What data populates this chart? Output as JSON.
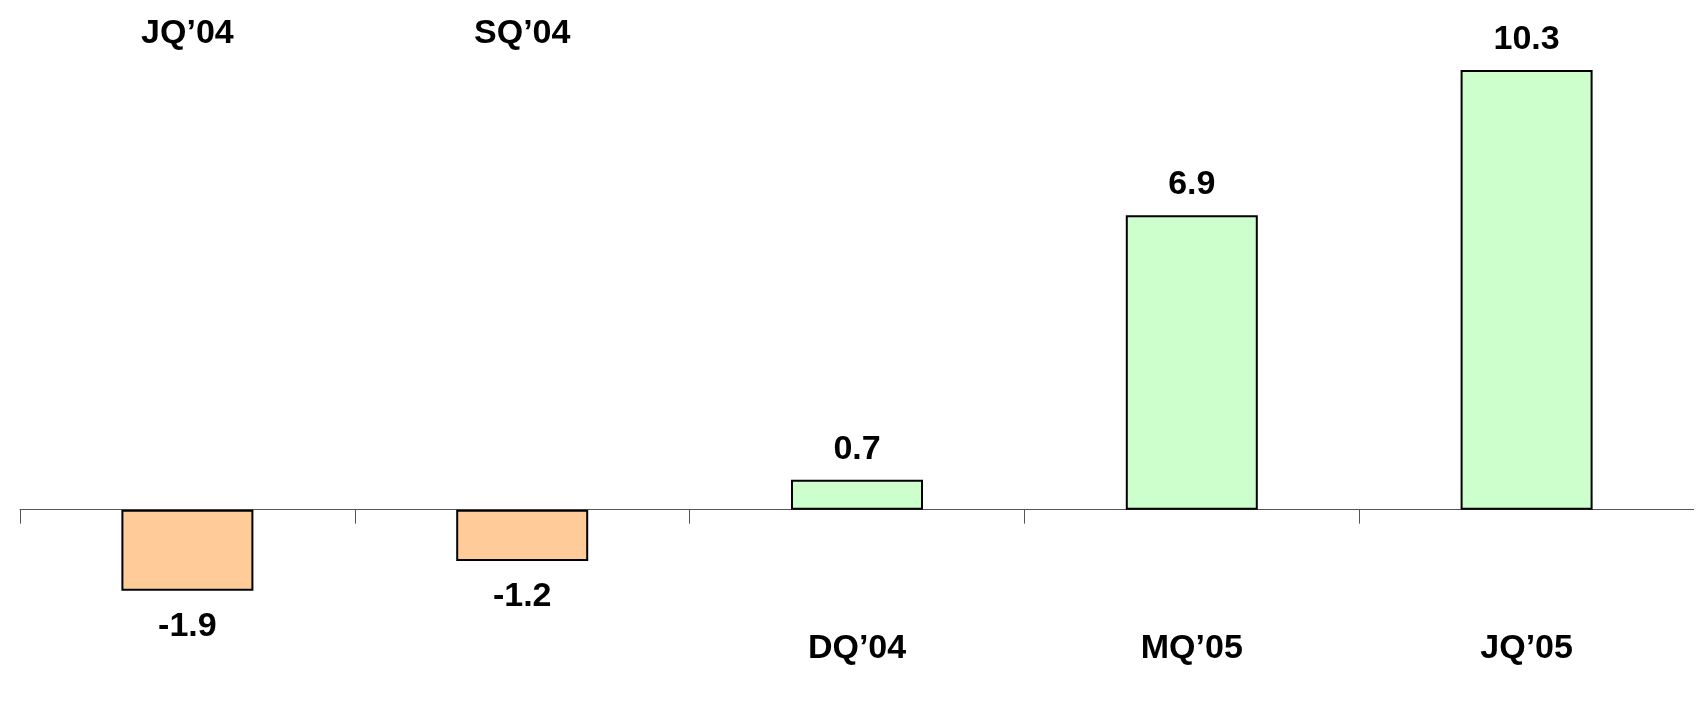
{
  "chart_data": {
    "type": "bar",
    "categories": [
      "JQ’04",
      "SQ’04",
      "DQ’04",
      "MQ’05",
      "JQ’05"
    ],
    "values": [
      -1.9,
      -1.2,
      0.7,
      6.9,
      10.3
    ],
    "colors": [
      "#ffcc99",
      "#ffcc99",
      "#ccffcc",
      "#ccffcc",
      "#ccffcc"
    ],
    "data_labels": true
  }
}
